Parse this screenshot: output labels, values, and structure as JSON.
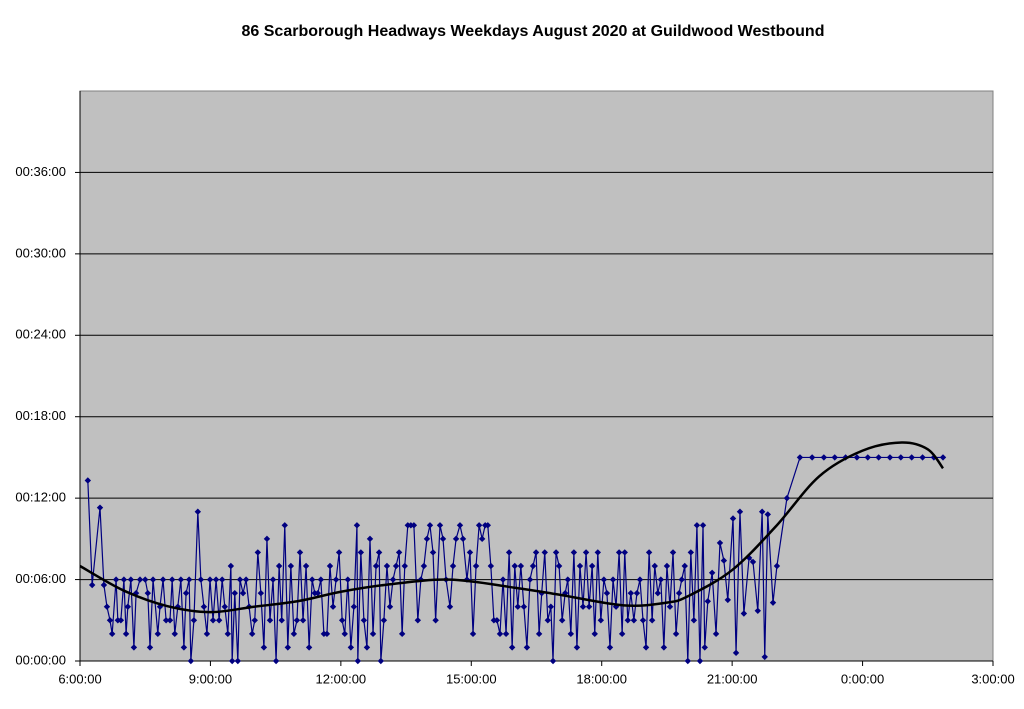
{
  "chart_data": {
    "type": "line",
    "title": "86 Scarborough Headways Weekdays August 2020 at Guildwood Westbound",
    "xlim": [
      6,
      27
    ],
    "xticks": [
      {
        "value": 6,
        "label": "6:00:00"
      },
      {
        "value": 9,
        "label": "9:00:00"
      },
      {
        "value": 12,
        "label": "12:00:00"
      },
      {
        "value": 15,
        "label": "15:00:00"
      },
      {
        "value": 18,
        "label": "18:00:00"
      },
      {
        "value": 21,
        "label": "21:00:00"
      },
      {
        "value": 24,
        "label": "0:00:00"
      },
      {
        "value": 27,
        "label": "3:00:00"
      }
    ],
    "ylim": [
      0,
      42
    ],
    "yticks": [
      {
        "value": 0,
        "label": "00:00:00"
      },
      {
        "value": 6,
        "label": "00:06:00"
      },
      {
        "value": 12,
        "label": "00:12:00"
      },
      {
        "value": 18,
        "label": "00:18:00"
      },
      {
        "value": 24,
        "label": "00:24:00"
      },
      {
        "value": 30,
        "label": "00:30:00"
      },
      {
        "value": 36,
        "label": "00:36:00"
      }
    ],
    "grid": true,
    "plot_background": "#c0c0c0",
    "series": [
      {
        "color": "#000080",
        "marker": "diamond",
        "x": [
          6.18,
          6.28,
          6.46,
          6.55,
          6.62,
          6.69,
          6.74,
          6.83,
          6.87,
          6.94,
          7.01,
          7.06,
          7.1,
          7.17,
          7.24,
          7.29,
          7.38,
          7.5,
          7.56,
          7.61,
          7.68,
          7.79,
          7.84,
          7.91,
          7.98,
          8.07,
          8.12,
          8.18,
          8.25,
          8.32,
          8.39,
          8.44,
          8.51,
          8.55,
          8.62,
          8.71,
          8.78,
          8.85,
          8.92,
          8.99,
          9.06,
          9.13,
          9.2,
          9.27,
          9.33,
          9.4,
          9.47,
          9.5,
          9.56,
          9.63,
          9.68,
          9.75,
          9.82,
          9.89,
          9.96,
          10.02,
          10.09,
          10.16,
          10.23,
          10.3,
          10.37,
          10.44,
          10.51,
          10.58,
          10.64,
          10.71,
          10.78,
          10.85,
          10.92,
          10.99,
          11.06,
          11.13,
          11.2,
          11.27,
          11.34,
          11.4,
          11.47,
          11.54,
          11.61,
          11.68,
          11.75,
          11.82,
          11.89,
          11.96,
          12.03,
          12.09,
          12.16,
          12.23,
          12.3,
          12.37,
          12.39,
          12.46,
          12.53,
          12.6,
          12.67,
          12.74,
          12.81,
          12.88,
          12.92,
          12.99,
          13.06,
          13.13,
          13.2,
          13.27,
          13.34,
          13.41,
          13.47,
          13.54,
          13.61,
          13.68,
          13.77,
          13.84,
          13.91,
          13.98,
          14.05,
          14.12,
          14.18,
          14.28,
          14.35,
          14.42,
          14.51,
          14.58,
          14.65,
          14.74,
          14.81,
          14.9,
          14.97,
          15.04,
          15.11,
          15.18,
          15.25,
          15.32,
          15.38,
          15.45,
          15.52,
          15.59,
          15.66,
          15.73,
          15.8,
          15.87,
          15.94,
          16.0,
          16.07,
          16.14,
          16.21,
          16.28,
          16.35,
          16.42,
          16.49,
          16.56,
          16.62,
          16.69,
          16.76,
          16.83,
          16.88,
          16.95,
          17.02,
          17.09,
          17.16,
          17.22,
          17.29,
          17.36,
          17.43,
          17.5,
          17.57,
          17.64,
          17.71,
          17.78,
          17.84,
          17.91,
          17.98,
          18.05,
          18.12,
          18.19,
          18.26,
          18.33,
          18.4,
          18.47,
          18.53,
          18.6,
          18.67,
          18.74,
          18.81,
          18.88,
          18.95,
          19.02,
          19.09,
          19.16,
          19.22,
          19.29,
          19.36,
          19.43,
          19.5,
          19.57,
          19.64,
          19.71,
          19.78,
          19.84,
          19.91,
          19.98,
          20.05,
          20.12,
          20.19,
          20.26,
          20.33,
          20.37,
          20.44,
          20.54,
          20.63,
          20.72,
          20.81,
          20.9,
          21.02,
          21.09,
          21.18,
          21.27,
          21.39,
          21.48,
          21.59,
          21.69,
          21.75,
          21.82,
          21.94,
          22.03,
          22.26,
          22.56,
          22.84,
          23.11,
          23.36,
          23.61,
          23.87,
          24.12,
          24.37,
          24.63,
          24.88,
          25.13,
          25.38,
          25.64,
          25.85
        ],
        "values": [
          13.3,
          5.6,
          11.3,
          5.6,
          4,
          3,
          2,
          6,
          3,
          3,
          6,
          2,
          4,
          6,
          1,
          5,
          6,
          6,
          5,
          1,
          6,
          2,
          4,
          6,
          3,
          3,
          6,
          2,
          4,
          6,
          1,
          5,
          6,
          0,
          3,
          11,
          6,
          4,
          2,
          6,
          3,
          6,
          3,
          6,
          4,
          2,
          7,
          0,
          5,
          0,
          6,
          5,
          6,
          4,
          2,
          3,
          8,
          5,
          1,
          9,
          3,
          6,
          0,
          7,
          3,
          10,
          1,
          7,
          2,
          3,
          8,
          3,
          7,
          1,
          6,
          5,
          5,
          6,
          2,
          2,
          7,
          4,
          6,
          8,
          3,
          2,
          6,
          1,
          4,
          10,
          0,
          8,
          3,
          1,
          9,
          2,
          7,
          8,
          0,
          3,
          7,
          4,
          6,
          7,
          8,
          2,
          7,
          10,
          10,
          10,
          3,
          6,
          7,
          9,
          10,
          8,
          3,
          10,
          9,
          6,
          4,
          7,
          9,
          10,
          9,
          6,
          8,
          2,
          7,
          10,
          9,
          10,
          10,
          7,
          3,
          3,
          2,
          6,
          2,
          8,
          1,
          7,
          4,
          7,
          4,
          1,
          6,
          7,
          8,
          2,
          5,
          8,
          3,
          4,
          0,
          8,
          7,
          3,
          5,
          6,
          2,
          8,
          1,
          7,
          4,
          8,
          4,
          7,
          2,
          8,
          3,
          6,
          5,
          1,
          6,
          4,
          8,
          2,
          8,
          3,
          5,
          3,
          5,
          6,
          3,
          1,
          8,
          3,
          7,
          5,
          6,
          1,
          7,
          4,
          8,
          2,
          5,
          6,
          7,
          0,
          8,
          3,
          10,
          0,
          10,
          1,
          4.4,
          6.5,
          2,
          8.7,
          7.4,
          4.5,
          10.5,
          0.6,
          11,
          3.5,
          7.6,
          7.3,
          3.7,
          11,
          0.3,
          10.8,
          4.3,
          7,
          12,
          15,
          15,
          15,
          15,
          15,
          15,
          15,
          15,
          15,
          15,
          15,
          15,
          15,
          15
        ]
      },
      {
        "color": "#000000",
        "smooth": true,
        "x": [
          6,
          7,
          8,
          9,
          10,
          11,
          12,
          13,
          14.5,
          16,
          17,
          18.5,
          19.5,
          20,
          21,
          22,
          23,
          24,
          24.9,
          25.5,
          25.85
        ],
        "values": [
          7.0,
          5.2,
          4.05,
          3.6,
          4.0,
          4.4,
          5.1,
          5.6,
          6.0,
          5.4,
          4.9,
          4.1,
          4.3,
          4.8,
          6.7,
          9.9,
          13.6,
          15.5,
          16.1,
          15.6,
          14.2
        ]
      }
    ]
  }
}
